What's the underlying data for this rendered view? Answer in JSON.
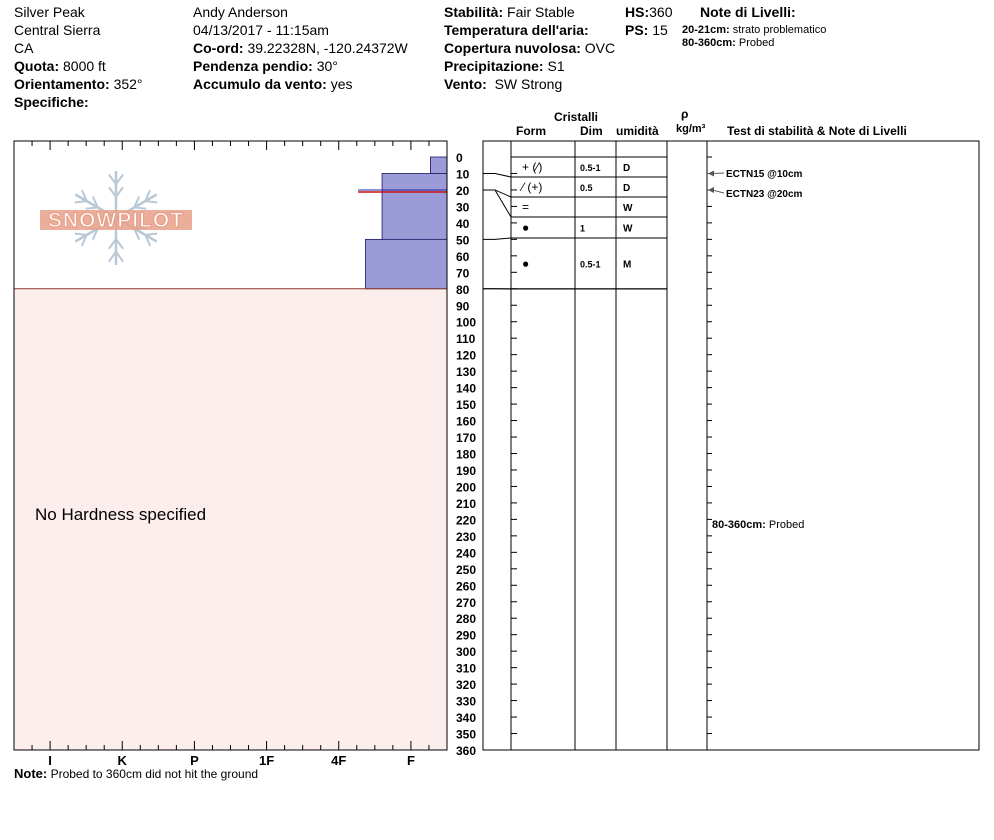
{
  "header": {
    "location": "Silver Peak",
    "range": "Central Sierra",
    "state": "CA",
    "elevation_label": "Quota:",
    "elevation": "8000 ft",
    "aspect_label": "Orientamento:",
    "aspect": "352°",
    "specifics_label": "Specifiche:",
    "observer": "Andy Anderson",
    "datetime": "04/13/2017 - 11:15am",
    "coord_label": "Co-ord:",
    "coord": "39.22328N, -120.24372W",
    "slope_label": "Pendenza pendio:",
    "slope": "30°",
    "wind_loading_label": "Accumulo da vento:",
    "wind_loading": "yes",
    "stability_label": "Stabilità:",
    "stability": "Fair Stable",
    "air_temp_label": "Temperatura dell'aria:",
    "cloud_label": "Copertura nuvolosa:",
    "cloud": "OVC",
    "precip_label": "Precipitazione:",
    "precip": "S1",
    "wind_label": "Vento:",
    "wind": "SW Strong",
    "hs_label": "HS:",
    "hs": "360",
    "ps_label": "PS:",
    "ps": "15",
    "layer_notes_label": "Note di Livelli:",
    "layer_notes": [
      {
        "range": "20-21cm:",
        "text": "strato problematico"
      },
      {
        "range": "80-360cm:",
        "text": "Probed"
      }
    ]
  },
  "logo_text": "SNOWPILOT",
  "no_hardness": "No Hardness specified",
  "note_label": "Note:",
  "note_text": "Probed to 360cm did not hit the ground",
  "columns": {
    "crystals": "Cristalli",
    "form": "Form",
    "dim": "Dim",
    "moisture": "umidità",
    "rho": "ρ",
    "density_unit": "kg/m³",
    "tests": "Test di stabilità & Note di Livelli"
  },
  "side_note": {
    "range": "80-360cm:",
    "text": "Probed"
  },
  "chart_data": {
    "type": "bar",
    "title": "",
    "xlabel": "",
    "ylabel": "",
    "depth_range_cm": [
      0,
      360
    ],
    "depth_ticks": [
      0,
      10,
      20,
      30,
      40,
      50,
      60,
      70,
      80,
      90,
      100,
      110,
      120,
      130,
      140,
      150,
      160,
      170,
      180,
      190,
      200,
      210,
      220,
      230,
      240,
      250,
      260,
      270,
      280,
      290,
      300,
      310,
      320,
      330,
      340,
      350,
      360
    ],
    "hardness_ticks": [
      "I",
      "K",
      "P",
      "1F",
      "4F",
      "F"
    ],
    "hardness_profile": [
      {
        "top": 0,
        "bottom": 10,
        "hardness": 0.23
      },
      {
        "top": 10,
        "bottom": 20,
        "hardness": 0.9
      },
      {
        "top": 20,
        "bottom": 50,
        "hardness": 0.9
      },
      {
        "top": 50,
        "bottom": 80,
        "hardness": 1.13
      }
    ],
    "problem_layer_cm": [
      20,
      21
    ],
    "probed_range_cm": [
      80,
      360
    ],
    "layers": [
      {
        "top": 0,
        "bottom": 10,
        "form": "+ (⁄)",
        "dim": "0.5-1",
        "moisture": "D"
      },
      {
        "top": 10,
        "bottom": 20,
        "form": "⁄ (+)",
        "dim": "0.5",
        "moisture": "D"
      },
      {
        "top": 20,
        "bottom": 30,
        "form": "=",
        "dim": "",
        "moisture": "W"
      },
      {
        "top": 30,
        "bottom": 50,
        "form": "●",
        "dim": "1",
        "moisture": "W"
      },
      {
        "top": 50,
        "bottom": 80,
        "form": "●",
        "dim": "0.5-1",
        "moisture": "M"
      }
    ],
    "tests": [
      {
        "depth": 10,
        "label": "ECTN15 @10cm"
      },
      {
        "depth": 20,
        "label": "ECTN23 @20cm"
      }
    ]
  },
  "colors": {
    "layer_fill": "#9b9bd8",
    "probed_fill": "#fdeeee",
    "problem_line": "#cc1111",
    "problem_line2": "#2222aa",
    "logo": "#e8a08a",
    "flake": "#b9c8d6"
  }
}
